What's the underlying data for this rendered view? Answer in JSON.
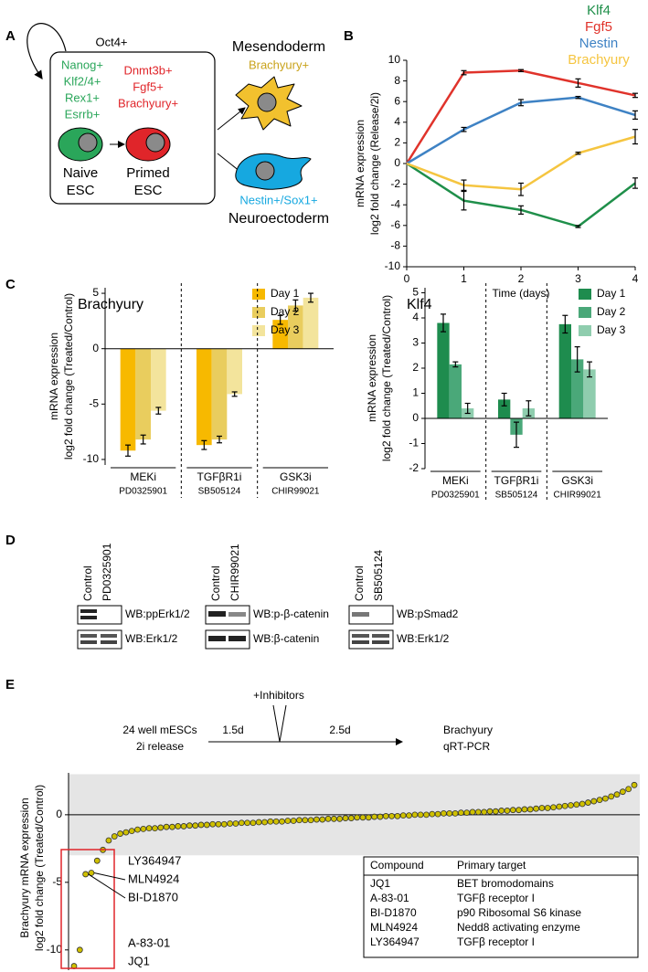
{
  "panel_labels": [
    "A",
    "B",
    "C",
    "D",
    "E"
  ],
  "diagram_a": {
    "outer_label": "Oct4+",
    "naive_markers": [
      "Nanog+",
      "Klf2/4+",
      "Rex1+",
      "Esrrb+"
    ],
    "primed_markers": [
      "Dnmt3b+",
      "Fgf5+",
      "Brachyury+"
    ],
    "naive_label": [
      "Naive",
      "ESC"
    ],
    "primed_label": [
      "Primed",
      "ESC"
    ],
    "mesendoderm": "Mesendoderm",
    "mesendoderm_marker": "Brachyury+",
    "neuroectoderm": "Neuroectoderm",
    "neuroectoderm_marker": "Nestin+/Sox1+"
  },
  "chart_data": [
    {
      "type": "line",
      "x": [
        0,
        1,
        2,
        3,
        4
      ],
      "xlim": [
        0,
        4
      ],
      "xticks": [
        0,
        1,
        2,
        3,
        4
      ],
      "ylim": [
        -10,
        10
      ],
      "yticks": [
        -10,
        -8,
        -6,
        -4,
        -2,
        0,
        2,
        4,
        6,
        8,
        10
      ],
      "xlabel": "Time (days)",
      "ylabel": [
        "mRNA expression",
        "log2 fold change (Release/2i)"
      ],
      "series": [
        {
          "name": "Klf4",
          "color": "#1f8f4a",
          "values": [
            0,
            -3.6,
            -4.5,
            -6.1,
            -1.9
          ],
          "errors": [
            0,
            0.9,
            0.4,
            0.1,
            0.5
          ]
        },
        {
          "name": "Fgf5",
          "color": "#e0332b",
          "values": [
            0,
            8.8,
            9.0,
            7.8,
            6.6
          ],
          "errors": [
            0,
            0.2,
            0.1,
            0.4,
            0.2
          ]
        },
        {
          "name": "Nestin",
          "color": "#3e82c4",
          "values": [
            0,
            3.3,
            5.9,
            6.4,
            4.7
          ],
          "errors": [
            0,
            0.2,
            0.3,
            0.1,
            0.4
          ]
        },
        {
          "name": "Brachyury",
          "color": "#f5c540",
          "values": [
            0,
            -2.1,
            -2.5,
            1.0,
            2.6
          ],
          "errors": [
            0,
            0.5,
            0.6,
            0.1,
            0.7
          ]
        }
      ]
    },
    {
      "type": "bar",
      "title": "Brachyury",
      "categories": [
        "MEKi",
        "TGFβR1i",
        "GSK3i"
      ],
      "sublabels": [
        "PD0325901",
        "SB505124",
        "CHIR99021"
      ],
      "ylim": [
        -10.5,
        5.5
      ],
      "yticks": [
        -10,
        -5,
        0,
        5
      ],
      "ylabel": [
        "mRNA expression",
        "log2 fold change (Treated/Control)"
      ],
      "series": [
        {
          "name": "Day 1",
          "color": "#f7b900",
          "values": [
            -9.2,
            -8.7,
            2.6
          ],
          "errors": [
            0.5,
            0.4,
            0.4
          ]
        },
        {
          "name": "Day 2",
          "color": "#e9cd5e",
          "values": [
            -8.2,
            -8.2,
            3.9
          ],
          "errors": [
            0.4,
            0.3,
            0.5
          ]
        },
        {
          "name": "Day 3",
          "color": "#f3e49c",
          "values": [
            -5.6,
            -4.1,
            4.6
          ],
          "errors": [
            0.3,
            0.2,
            0.4
          ]
        }
      ]
    },
    {
      "type": "bar",
      "title": "Klf4",
      "categories": [
        "MEKi",
        "TGFβR1i",
        "GSK3i"
      ],
      "sublabels": [
        "PD0325901",
        "SB505124",
        "CHIR99021"
      ],
      "ylim": [
        -2,
        5.2
      ],
      "yticks": [
        -2,
        -1,
        0,
        1,
        2,
        3,
        4,
        5
      ],
      "ylabel": [
        "mRNA expression",
        "log2 fold change (Treated/Control)"
      ],
      "series": [
        {
          "name": "Day 1",
          "color": "#1e8c4e",
          "values": [
            3.8,
            0.75,
            3.75
          ],
          "errors": [
            0.35,
            0.25,
            0.35
          ]
        },
        {
          "name": "Day 2",
          "color": "#4aa879",
          "values": [
            2.15,
            -0.65,
            2.35
          ],
          "errors": [
            0.1,
            0.5,
            0.5
          ]
        },
        {
          "name": "Day 3",
          "color": "#8fcdae",
          "values": [
            0.4,
            0.4,
            1.95
          ],
          "errors": [
            0.2,
            0.3,
            0.3
          ]
        }
      ]
    },
    {
      "type": "scatter",
      "color": "#cfc000",
      "ylim": [
        -11.5,
        3.1
      ],
      "yticks": [
        -10,
        -5,
        0
      ],
      "band": [
        -3,
        3
      ],
      "ylabel": [
        "Brachyury mRNA expression",
        "log2 fold change (Treated/Control)"
      ],
      "annotations": [
        "LY364947",
        "MLN4924",
        "BI-D1870",
        "A-83-01",
        "JQ1"
      ],
      "values": [
        -11.2,
        -10.0,
        -4.4,
        -4.3,
        -3.4,
        -2.6,
        -1.9,
        -1.6,
        -1.4,
        -1.3,
        -1.2,
        -1.1,
        -1.05,
        -1.0,
        -1.0,
        -0.95,
        -0.9,
        -0.9,
        -0.85,
        -0.85,
        -0.8,
        -0.8,
        -0.75,
        -0.75,
        -0.7,
        -0.7,
        -0.7,
        -0.65,
        -0.65,
        -0.6,
        -0.6,
        -0.6,
        -0.55,
        -0.55,
        -0.5,
        -0.5,
        -0.5,
        -0.45,
        -0.45,
        -0.4,
        -0.4,
        -0.4,
        -0.35,
        -0.35,
        -0.3,
        -0.3,
        -0.3,
        -0.25,
        -0.25,
        -0.2,
        -0.2,
        -0.2,
        -0.15,
        -0.15,
        -0.1,
        -0.1,
        -0.1,
        -0.05,
        -0.05,
        0,
        0,
        0,
        0.05,
        0.05,
        0.1,
        0.1,
        0.1,
        0.15,
        0.15,
        0.2,
        0.2,
        0.2,
        0.25,
        0.25,
        0.3,
        0.3,
        0.35,
        0.35,
        0.4,
        0.4,
        0.45,
        0.5,
        0.5,
        0.55,
        0.6,
        0.65,
        0.7,
        0.75,
        0.8,
        0.9,
        1.0,
        1.1,
        1.2,
        1.35,
        1.5,
        1.7,
        1.9,
        2.2
      ]
    }
  ],
  "blots": [
    {
      "lanes": [
        "Control",
        "PD0325901"
      ],
      "rows": [
        "WB:ppErk1/2",
        "WB:Erk1/2"
      ]
    },
    {
      "lanes": [
        "Control",
        "CHIR99021"
      ],
      "rows": [
        "WB:p-β-catenin",
        "WB:β-catenin"
      ]
    },
    {
      "lanes": [
        "Control",
        "SB505124"
      ],
      "rows": [
        "WB:pSmad2",
        "WB:Erk1/2"
      ]
    }
  ],
  "schematic_e": {
    "treatment": "+Inhibitors",
    "start": [
      "24 well mESCs",
      "2i release"
    ],
    "interval_1": "1.5d",
    "interval_2": "2.5d",
    "readout": [
      "Brachyury",
      "qRT-PCR"
    ]
  },
  "compound_table": {
    "header": [
      "Compound",
      "Primary target"
    ],
    "rows": [
      [
        "JQ1",
        "BET bromodomains"
      ],
      [
        "A-83-01",
        "TGFβ receptor I"
      ],
      [
        "BI-D1870",
        "p90 Ribosomal S6 kinase"
      ],
      [
        "MLN4924",
        "Nedd8 activating enzyme"
      ],
      [
        "LY364947",
        "TGFβ receptor I"
      ]
    ]
  }
}
